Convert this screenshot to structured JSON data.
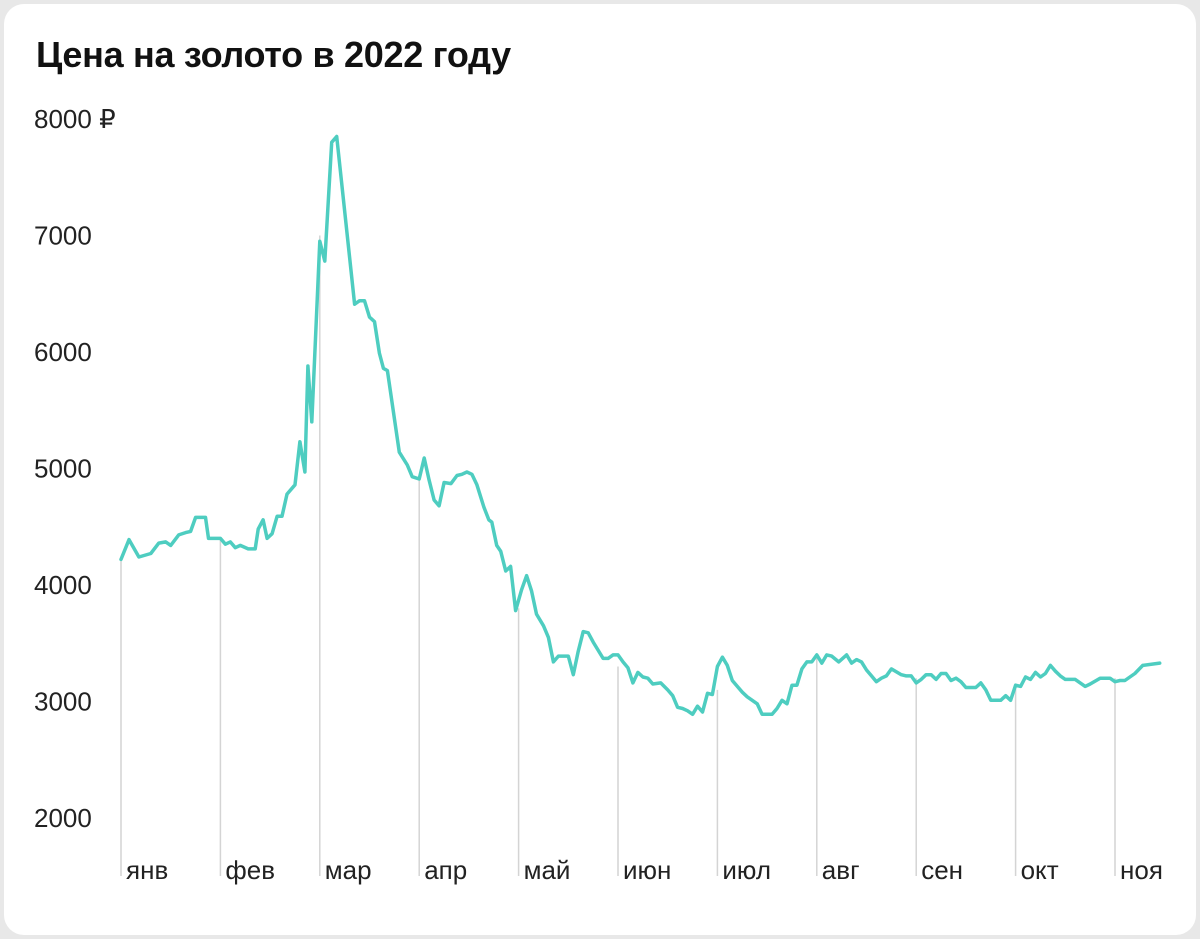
{
  "title": "Цена на золото в 2022 году",
  "chart_data": {
    "type": "line",
    "title": "Цена на золото в 2022 году",
    "xlabel": "",
    "ylabel": "",
    "ylim": [
      2000,
      8000
    ],
    "y_ticks": [
      "8000 ₽",
      "7000",
      "6000",
      "5000",
      "4000",
      "3000",
      "2000"
    ],
    "y_tick_values": [
      8000,
      7000,
      6000,
      5000,
      4000,
      3000,
      2000
    ],
    "months": [
      "янв",
      "фев",
      "мар",
      "апр",
      "май",
      "июн",
      "июл",
      "авг",
      "сен",
      "окт",
      "ноя"
    ],
    "grid": "vertical lines at month starts",
    "line_color": "#4ecdc0",
    "grid_color": "#d4d4d4",
    "series": [
      {
        "values": [
          [
            0.0,
            4220
          ],
          [
            0.08,
            4390
          ],
          [
            0.18,
            4240
          ],
          [
            0.3,
            4270
          ],
          [
            0.38,
            4360
          ],
          [
            0.45,
            4370
          ],
          [
            0.5,
            4340
          ],
          [
            0.58,
            4430
          ],
          [
            0.65,
            4450
          ],
          [
            0.7,
            4460
          ],
          [
            0.75,
            4580
          ],
          [
            0.85,
            4580
          ],
          [
            0.88,
            4400
          ],
          [
            0.95,
            4400
          ],
          [
            1.0,
            4400
          ],
          [
            1.05,
            4350
          ],
          [
            1.1,
            4370
          ],
          [
            1.15,
            4320
          ],
          [
            1.2,
            4340
          ],
          [
            1.28,
            4310
          ],
          [
            1.35,
            4310
          ],
          [
            1.38,
            4480
          ],
          [
            1.43,
            4560
          ],
          [
            1.47,
            4400
          ],
          [
            1.52,
            4440
          ],
          [
            1.57,
            4590
          ],
          [
            1.62,
            4590
          ],
          [
            1.67,
            4780
          ],
          [
            1.75,
            4860
          ],
          [
            1.8,
            5230
          ],
          [
            1.85,
            4970
          ],
          [
            1.88,
            5880
          ],
          [
            1.92,
            5400
          ],
          [
            2.0,
            6950
          ],
          [
            2.05,
            6780
          ],
          [
            2.12,
            7800
          ],
          [
            2.17,
            7850
          ],
          [
            2.35,
            6410
          ],
          [
            2.4,
            6440
          ],
          [
            2.45,
            6440
          ],
          [
            2.5,
            6300
          ],
          [
            2.55,
            6260
          ],
          [
            2.6,
            5990
          ],
          [
            2.64,
            5860
          ],
          [
            2.68,
            5840
          ],
          [
            2.8,
            5140
          ],
          [
            2.88,
            5030
          ],
          [
            2.93,
            4930
          ],
          [
            3.0,
            4910
          ],
          [
            3.05,
            5090
          ],
          [
            3.1,
            4900
          ],
          [
            3.15,
            4730
          ],
          [
            3.2,
            4680
          ],
          [
            3.25,
            4880
          ],
          [
            3.32,
            4870
          ],
          [
            3.38,
            4940
          ],
          [
            3.43,
            4950
          ],
          [
            3.48,
            4970
          ],
          [
            3.53,
            4950
          ],
          [
            3.58,
            4860
          ],
          [
            3.65,
            4670
          ],
          [
            3.7,
            4560
          ],
          [
            3.73,
            4540
          ],
          [
            3.78,
            4340
          ],
          [
            3.82,
            4290
          ],
          [
            3.87,
            4120
          ],
          [
            3.92,
            4160
          ],
          [
            3.97,
            3780
          ],
          [
            4.03,
            3960
          ],
          [
            4.08,
            4080
          ],
          [
            4.13,
            3950
          ],
          [
            4.18,
            3750
          ],
          [
            4.25,
            3650
          ],
          [
            4.3,
            3550
          ],
          [
            4.35,
            3340
          ],
          [
            4.4,
            3390
          ],
          [
            4.5,
            3390
          ],
          [
            4.55,
            3230
          ],
          [
            4.6,
            3430
          ],
          [
            4.65,
            3600
          ],
          [
            4.7,
            3590
          ],
          [
            4.75,
            3510
          ],
          [
            4.85,
            3370
          ],
          [
            4.9,
            3370
          ],
          [
            4.95,
            3400
          ],
          [
            5.0,
            3400
          ],
          [
            5.05,
            3340
          ],
          [
            5.1,
            3290
          ],
          [
            5.15,
            3160
          ],
          [
            5.2,
            3250
          ],
          [
            5.25,
            3210
          ],
          [
            5.3,
            3200
          ],
          [
            5.35,
            3150
          ],
          [
            5.43,
            3160
          ],
          [
            5.5,
            3100
          ],
          [
            5.55,
            3050
          ],
          [
            5.6,
            2950
          ],
          [
            5.65,
            2940
          ],
          [
            5.7,
            2920
          ],
          [
            5.75,
            2890
          ],
          [
            5.8,
            2960
          ],
          [
            5.85,
            2910
          ],
          [
            5.9,
            3070
          ],
          [
            5.95,
            3060
          ],
          [
            6.0,
            3300
          ],
          [
            6.05,
            3380
          ],
          [
            6.1,
            3310
          ],
          [
            6.15,
            3180
          ],
          [
            6.2,
            3130
          ],
          [
            6.25,
            3080
          ],
          [
            6.3,
            3040
          ],
          [
            6.4,
            2980
          ],
          [
            6.45,
            2890
          ],
          [
            6.5,
            2890
          ],
          [
            6.55,
            2890
          ],
          [
            6.6,
            2940
          ],
          [
            6.65,
            3010
          ],
          [
            6.7,
            2980
          ],
          [
            6.75,
            3140
          ],
          [
            6.8,
            3140
          ],
          [
            6.85,
            3280
          ],
          [
            6.9,
            3340
          ],
          [
            6.95,
            3340
          ],
          [
            7.0,
            3400
          ],
          [
            7.05,
            3330
          ],
          [
            7.1,
            3400
          ],
          [
            7.15,
            3390
          ],
          [
            7.22,
            3340
          ],
          [
            7.3,
            3400
          ],
          [
            7.35,
            3330
          ],
          [
            7.4,
            3360
          ],
          [
            7.45,
            3340
          ],
          [
            7.5,
            3270
          ],
          [
            7.55,
            3220
          ],
          [
            7.6,
            3170
          ],
          [
            7.65,
            3200
          ],
          [
            7.7,
            3220
          ],
          [
            7.75,
            3280
          ],
          [
            7.85,
            3230
          ],
          [
            7.9,
            3220
          ],
          [
            7.95,
            3220
          ],
          [
            8.0,
            3160
          ],
          [
            8.05,
            3190
          ],
          [
            8.1,
            3230
          ],
          [
            8.15,
            3230
          ],
          [
            8.2,
            3190
          ],
          [
            8.25,
            3240
          ],
          [
            8.3,
            3240
          ],
          [
            8.35,
            3180
          ],
          [
            8.4,
            3200
          ],
          [
            8.45,
            3170
          ],
          [
            8.5,
            3120
          ],
          [
            8.55,
            3120
          ],
          [
            8.6,
            3120
          ],
          [
            8.65,
            3160
          ],
          [
            8.7,
            3100
          ],
          [
            8.75,
            3010
          ],
          [
            8.85,
            3010
          ],
          [
            8.9,
            3050
          ],
          [
            8.95,
            3010
          ],
          [
            9.0,
            3140
          ],
          [
            9.05,
            3130
          ],
          [
            9.1,
            3210
          ],
          [
            9.15,
            3190
          ],
          [
            9.2,
            3250
          ],
          [
            9.25,
            3210
          ],
          [
            9.3,
            3240
          ],
          [
            9.35,
            3310
          ],
          [
            9.4,
            3260
          ],
          [
            9.45,
            3220
          ],
          [
            9.5,
            3190
          ],
          [
            9.6,
            3190
          ],
          [
            9.65,
            3160
          ],
          [
            9.7,
            3130
          ],
          [
            9.75,
            3150
          ],
          [
            9.85,
            3200
          ],
          [
            9.95,
            3200
          ],
          [
            10.0,
            3170
          ],
          [
            10.05,
            3180
          ],
          [
            10.1,
            3180
          ],
          [
            10.2,
            3240
          ],
          [
            10.28,
            3310
          ],
          [
            10.45,
            3330
          ]
        ]
      }
    ]
  }
}
